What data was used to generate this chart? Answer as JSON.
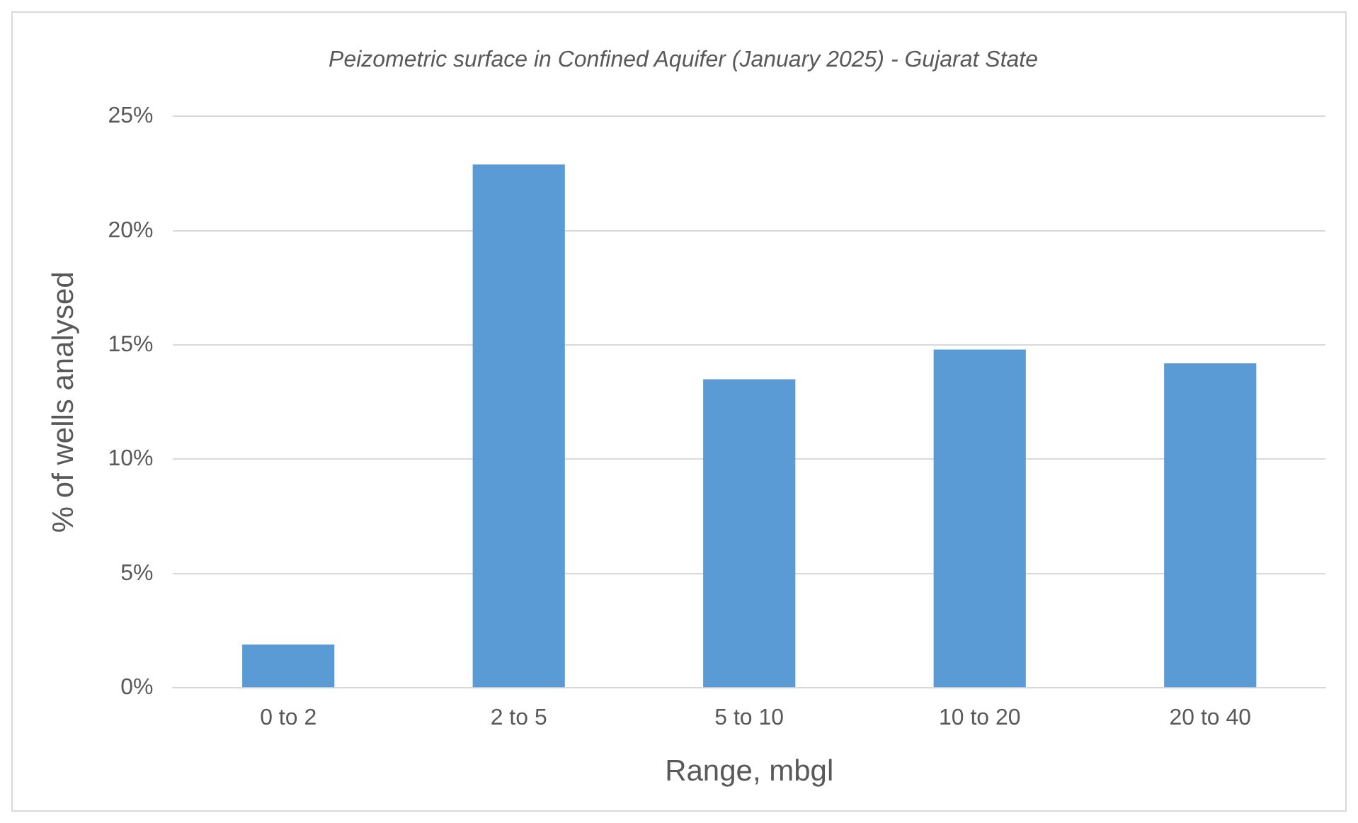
{
  "chart_data": {
    "type": "bar",
    "title": "Peizometric surface in Confined Aquifer (January 2025) - Gujarat State",
    "xlabel": "Range, mbgl",
    "ylabel": "% of wells analysed",
    "categories": [
      "0 to 2",
      "2 to 5",
      "5 to 10",
      "10 to 20",
      "20 to 40"
    ],
    "values": [
      1.9,
      22.9,
      13.5,
      14.8,
      14.2
    ],
    "color": "#5b9bd5",
    "ylim": [
      0,
      25
    ],
    "yticks": [
      {
        "value": 0,
        "label": "0%"
      },
      {
        "value": 5,
        "label": "5%"
      },
      {
        "value": 10,
        "label": "10%"
      },
      {
        "value": 15,
        "label": "15%"
      },
      {
        "value": 20,
        "label": "20%"
      },
      {
        "value": 25,
        "label": "25%"
      }
    ],
    "grid": "y",
    "legend": false
  }
}
